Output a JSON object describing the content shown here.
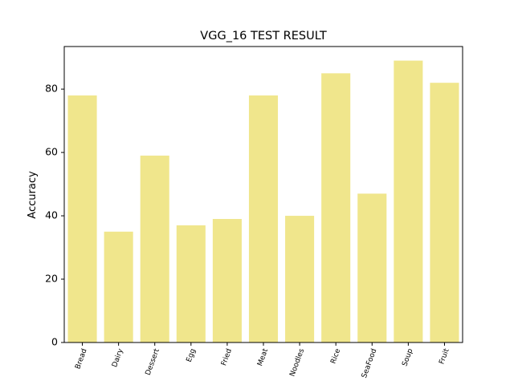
{
  "chart_data": {
    "type": "bar",
    "title": "VGG_16 TEST RESULT",
    "xlabel": "",
    "ylabel": "Accuracy",
    "categories": [
      "Bread",
      "Dairy",
      "Dessert",
      "Egg",
      "Fried",
      "Meat",
      "Noodles",
      "Rice",
      "SeaFood",
      "Soup",
      "Fruit"
    ],
    "values": [
      78,
      35,
      59,
      37,
      39,
      78,
      40,
      85,
      47,
      89,
      82
    ],
    "ylim": [
      0,
      93.45
    ],
    "yticks": [
      0,
      20,
      40,
      60,
      80
    ],
    "bar_color": "#f0e68c",
    "grid": false,
    "legend": "none",
    "xtick_rotation": -70
  }
}
